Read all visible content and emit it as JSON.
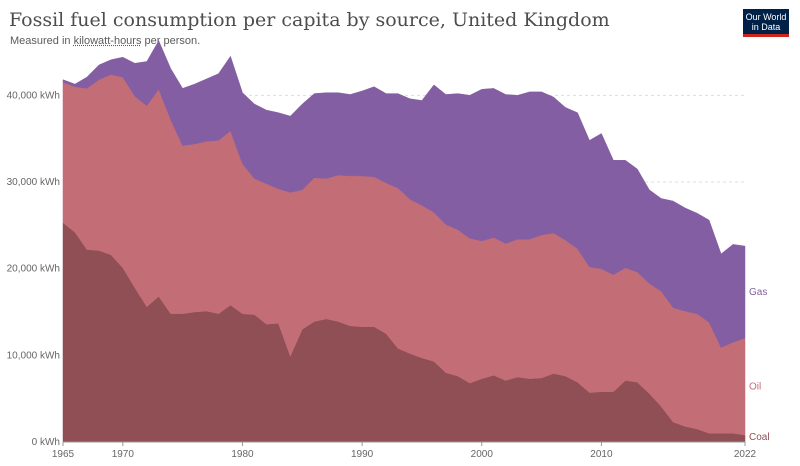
{
  "header": {
    "title": "Fossil fuel consumption per capita by source, United Kingdom",
    "subtitle_prefix": "Measured in",
    "subtitle_unit": "kilowatt-hours",
    "subtitle_suffix": "per person."
  },
  "logo": {
    "line1": "Our World",
    "line2": "in Data"
  },
  "chart_data": {
    "type": "area",
    "stacked": true,
    "x": [
      1965,
      1966,
      1967,
      1968,
      1969,
      1970,
      1971,
      1972,
      1973,
      1974,
      1975,
      1976,
      1977,
      1978,
      1979,
      1980,
      1981,
      1982,
      1983,
      1984,
      1985,
      1986,
      1987,
      1988,
      1989,
      1990,
      1991,
      1992,
      1993,
      1994,
      1995,
      1996,
      1997,
      1998,
      1999,
      2000,
      2001,
      2002,
      2003,
      2004,
      2005,
      2006,
      2007,
      2008,
      2009,
      2010,
      2011,
      2012,
      2013,
      2014,
      2015,
      2016,
      2017,
      2018,
      2019,
      2020,
      2021,
      2022
    ],
    "series": [
      {
        "name": "Coal",
        "color": "#8f4f54",
        "values": [
          25300,
          24200,
          22200,
          22100,
          21600,
          20100,
          17800,
          15600,
          16800,
          14800,
          14800,
          15000,
          15100,
          14800,
          15800,
          14800,
          14700,
          13600,
          13700,
          9900,
          13000,
          13900,
          14200,
          13900,
          13400,
          13300,
          13300,
          12500,
          10800,
          10200,
          9700,
          9300,
          8000,
          7600,
          6800,
          7300,
          7700,
          7100,
          7500,
          7300,
          7400,
          7900,
          7600,
          6900,
          5700,
          5800,
          5800,
          7100,
          6900,
          5600,
          4100,
          2300,
          1800,
          1500,
          1000,
          1000,
          1000,
          800
        ]
      },
      {
        "name": "Oil",
        "color": "#c36d77",
        "values": [
          16200,
          16800,
          18600,
          19700,
          20800,
          22000,
          22100,
          23200,
          23900,
          22400,
          19400,
          19400,
          19600,
          20000,
          20100,
          17300,
          15700,
          16200,
          15500,
          18900,
          16100,
          16600,
          16200,
          16900,
          17300,
          17400,
          17300,
          17400,
          18500,
          17800,
          17600,
          17200,
          17100,
          16900,
          16700,
          15900,
          15900,
          15800,
          15900,
          16100,
          16500,
          16200,
          15700,
          15400,
          14500,
          14200,
          13500,
          13000,
          12700,
          12700,
          13300,
          13200,
          13300,
          13300,
          12800,
          9900,
          10500,
          11200
        ]
      },
      {
        "name": "Gas",
        "color": "#845ea2",
        "values": [
          300,
          300,
          1300,
          1700,
          1700,
          2300,
          3800,
          5100,
          5600,
          5900,
          6600,
          6900,
          7200,
          7700,
          8600,
          8200,
          8600,
          8500,
          8800,
          8800,
          9900,
          9700,
          9900,
          9500,
          9400,
          9800,
          10400,
          10300,
          10900,
          11600,
          12100,
          14700,
          15000,
          15700,
          16500,
          17500,
          17200,
          17200,
          16600,
          17000,
          16500,
          15700,
          15300,
          15700,
          14600,
          15600,
          13200,
          12400,
          11900,
          10800,
          10700,
          12300,
          11900,
          11600,
          11800,
          10800,
          11300,
          10600
        ]
      }
    ],
    "xlabel": "",
    "ylabel": "",
    "ylim": [
      0,
      45000
    ],
    "xlim": [
      1965,
      2022
    ],
    "yticks": [
      0,
      10000,
      20000,
      30000,
      40000
    ],
    "ytick_labels": [
      "0 kWh",
      "10,000 kWh",
      "20,000 kWh",
      "30,000 kWh",
      "40,000 kWh"
    ],
    "xticks": [
      1965,
      1970,
      1980,
      1990,
      2000,
      2010,
      2022
    ],
    "xtick_labels": [
      "1965",
      "1970",
      "1980",
      "1990",
      "2000",
      "2010",
      "2022"
    ],
    "grid": "horizontal dashed",
    "legend": "inline-right"
  }
}
